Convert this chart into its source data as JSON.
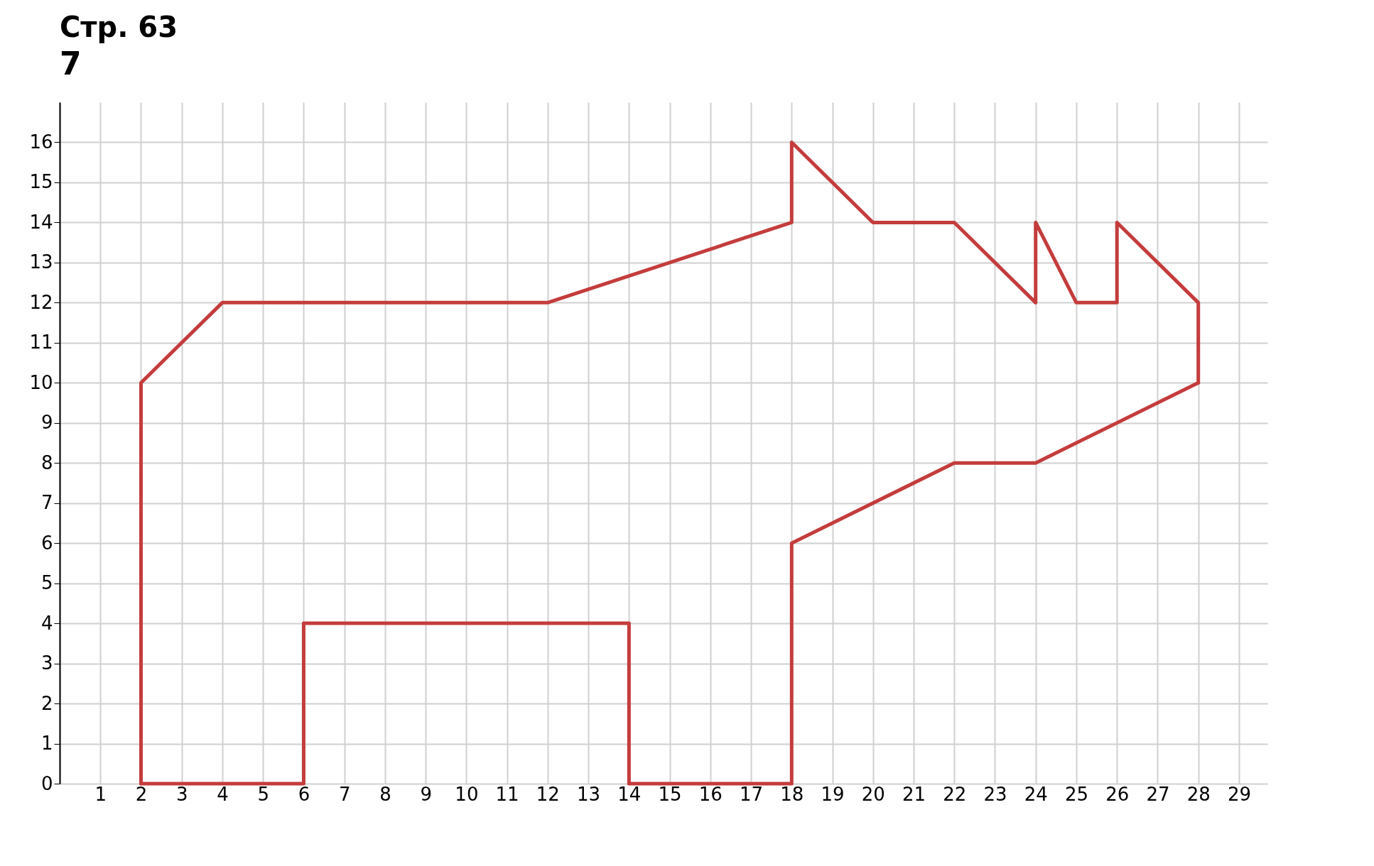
{
  "chart_data": {
    "type": "line",
    "title": "Стр. 63",
    "subtitle": "7",
    "xlim": [
      0,
      29.7
    ],
    "ylim": [
      0,
      17
    ],
    "xticks": [
      {
        "value": 0,
        "label": null
      },
      1,
      2,
      3,
      4,
      5,
      6,
      7,
      8,
      9,
      10,
      11,
      12,
      13,
      14,
      15,
      16,
      17,
      18,
      19,
      20,
      21,
      22,
      23,
      24,
      25,
      26,
      27,
      28,
      29
    ],
    "yticks": [
      0,
      1,
      2,
      3,
      4,
      5,
      6,
      7,
      8,
      9,
      10,
      11,
      12,
      13,
      14,
      15,
      16
    ],
    "grid": true,
    "marker": "none",
    "line_style": "solid",
    "series": [
      {
        "color": "#c43c3c",
        "x": [
          2,
          2,
          4,
          12,
          18,
          18,
          20,
          22,
          24,
          24,
          25,
          26,
          26,
          28,
          28
        ],
        "values": [
          0,
          10,
          12,
          12,
          14,
          16,
          14,
          14,
          12,
          14,
          12,
          12,
          14,
          12,
          10
        ]
      },
      {
        "color": "#c43c3c",
        "x": [
          2,
          6,
          6,
          14,
          14,
          18,
          18,
          22,
          24,
          28
        ],
        "values": [
          0,
          0,
          4,
          4,
          0,
          0,
          6,
          8,
          8,
          10
        ]
      }
    ]
  }
}
